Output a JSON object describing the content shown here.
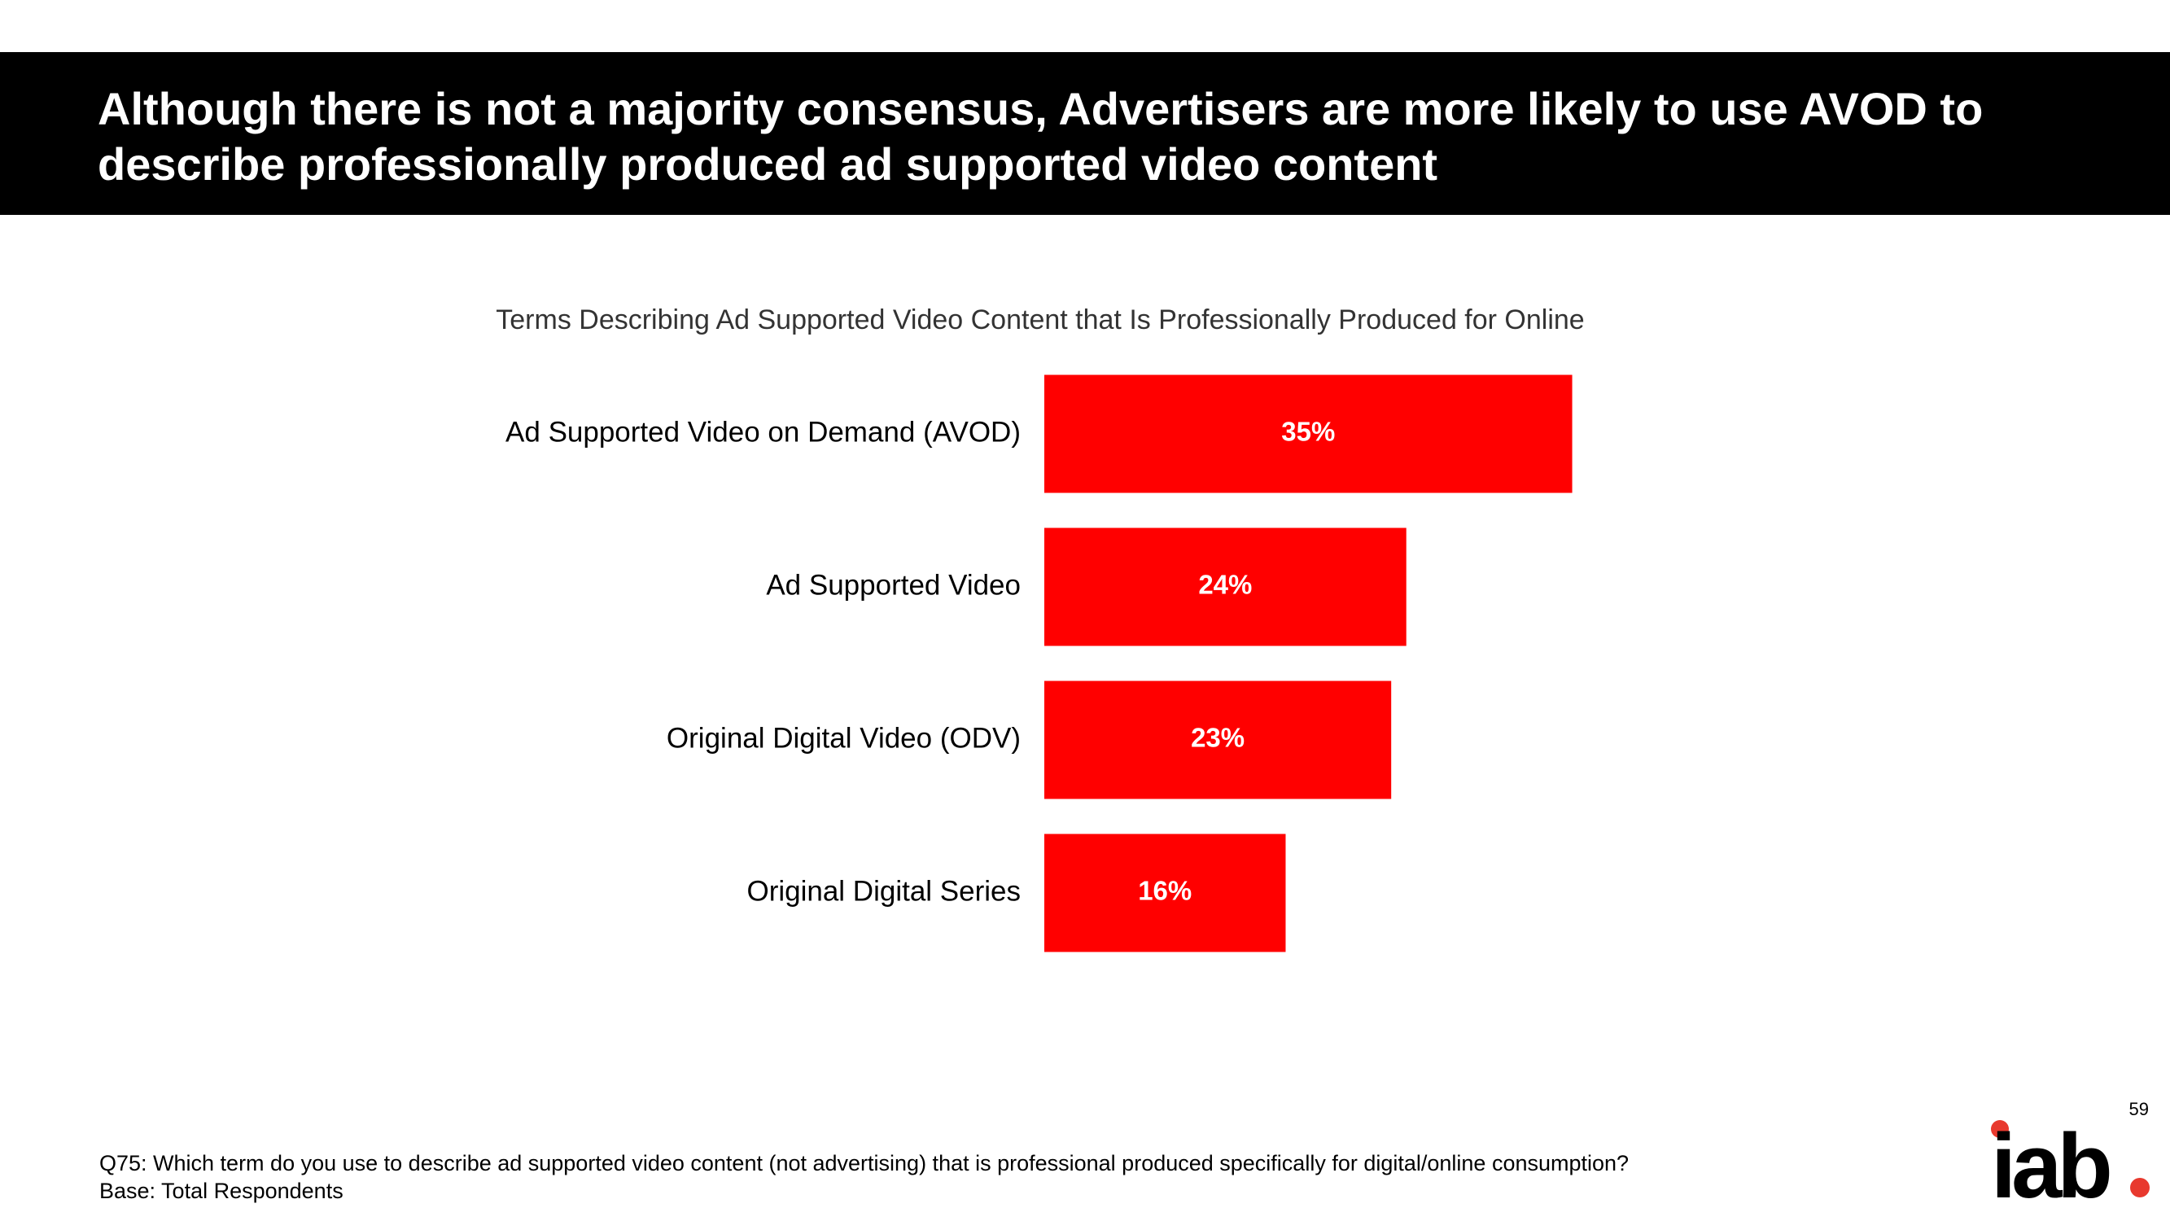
{
  "slide": {
    "title": "Although there is not a majority consensus, Advertisers are more likely to use AVOD to describe professionally produced ad supported video content",
    "page_number": "59",
    "footnote_question": "Q75: Which term do you use to describe ad supported video content (not advertising) that is professional produced specifically for digital/online consumption?",
    "footnote_base": "Base: Total Respondents"
  },
  "logo": {
    "text": "iab",
    "accent_color": "#e8392e"
  },
  "colors": {
    "bar": "#ff0000",
    "header_background": "#000000"
  },
  "chart_data": {
    "type": "bar",
    "orientation": "horizontal",
    "title": "Terms Describing Ad Supported Video Content that Is Professionally Produced for Online",
    "categories": [
      "Ad Supported Video on Demand (AVOD)",
      "Ad Supported Video",
      "Original Digital Video (ODV)",
      "Original Digital Series"
    ],
    "values": [
      35,
      24,
      23,
      16
    ],
    "value_labels": [
      "35%",
      "24%",
      "23%",
      "16%"
    ],
    "unit": "%",
    "xlim": [
      0,
      100
    ],
    "grid": false,
    "legend": "none"
  }
}
